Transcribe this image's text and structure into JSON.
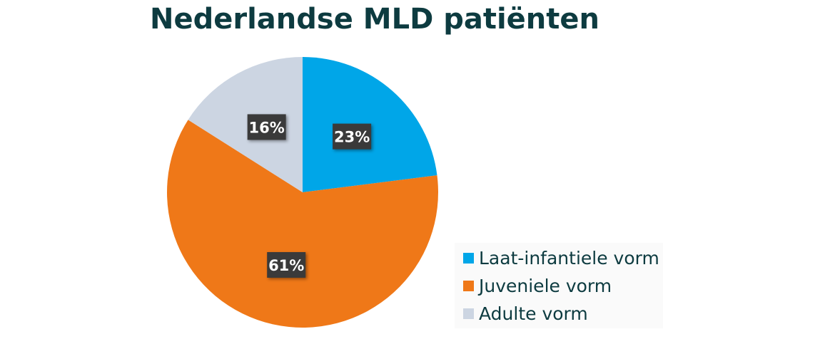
{
  "chart_data": {
    "type": "pie",
    "title": "Nederlandse MLD patiënten",
    "start": "12 o'clock, clockwise",
    "slices": [
      {
        "label": "Laat-infantiele vorm",
        "value": 23,
        "display": "23%",
        "color": "#00a6e8"
      },
      {
        "label": "Juveniele vorm",
        "value": 61,
        "display": "61%",
        "color": "#ef7818"
      },
      {
        "label": "Adulte vorm",
        "value": 16,
        "display": "16%",
        "color": "#ccd5e2"
      }
    ],
    "legend_position": "bottom-right",
    "data_label_style": {
      "background": "#3a3a3a",
      "text": "#ffffff"
    }
  }
}
